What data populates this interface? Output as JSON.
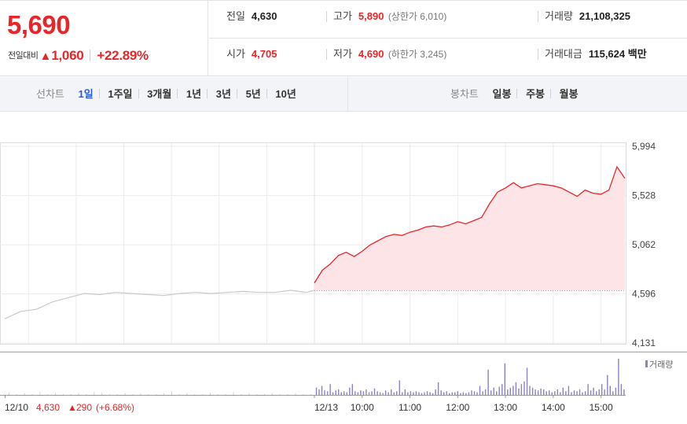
{
  "quote": {
    "price": "5,690",
    "change_label": "전일대비",
    "change_arrow": "▲",
    "change_amount": "1,060",
    "change_percent": "+22.89%"
  },
  "info": {
    "prev_close_label": "전일",
    "prev_close": "4,630",
    "high_label": "고가",
    "high": "5,890",
    "upper_limit_open": "(상한가",
    "upper_limit_value": "6,010",
    "upper_limit_close": ")",
    "volume_label": "거래량",
    "volume": "21,108,325",
    "open_label": "시가",
    "open": "4,705",
    "low_label": "저가",
    "low": "4,690",
    "lower_limit_open": "(하한가",
    "lower_limit_value": "3,245",
    "lower_limit_close": ")",
    "value_label": "거래대금",
    "value": "115,624",
    "value_unit": "백만"
  },
  "toolbar": {
    "line_chart_label": "선차트",
    "line_periods": [
      "1일",
      "1주일",
      "3개월",
      "1년",
      "3년",
      "5년",
      "10년"
    ],
    "active_period": "1일",
    "candle_chart_label": "봉차트",
    "candle_periods": [
      "일봉",
      "주봉",
      "월봉"
    ]
  },
  "colors": {
    "up": "#e8262a",
    "up_fill": "#fde4e6",
    "prev_day_line": "#c9c9c9",
    "volume": "#8f7fc6",
    "active_tab": "#2a5bd7"
  },
  "chart_data": {
    "type": "line",
    "price_axis_ticks": [
      "5,994",
      "5,528",
      "5,062",
      "4,596",
      "4,131"
    ],
    "price_axis_values": [
      5994,
      5528,
      5062,
      4596,
      4131
    ],
    "ylim": [
      4131,
      5994
    ],
    "baseline": 4630,
    "x_tick_labels": [
      "12/13",
      "10:00",
      "11:00",
      "12:00",
      "13:00",
      "14:00",
      "15:00"
    ],
    "prev_day_label": {
      "date": "12/10",
      "close": "4,630",
      "arrow": "▲",
      "change": "290",
      "percent": "(+6.68%)"
    },
    "volume_legend": "거래량",
    "series": [
      {
        "name": "12/10",
        "x": [
          "09:00",
          "09:20",
          "09:40",
          "10:00",
          "10:20",
          "10:40",
          "11:00",
          "11:20",
          "11:40",
          "12:00",
          "12:20",
          "12:40",
          "13:00",
          "13:20",
          "13:40",
          "14:00",
          "14:20",
          "14:40",
          "15:00",
          "15:20",
          "15:30"
        ],
        "y": [
          4360,
          4430,
          4450,
          4520,
          4560,
          4600,
          4590,
          4610,
          4600,
          4590,
          4580,
          4600,
          4610,
          4600,
          4610,
          4620,
          4610,
          4610,
          4630,
          4610,
          4630
        ]
      },
      {
        "name": "12/13",
        "x": [
          "09:00",
          "09:10",
          "09:20",
          "09:30",
          "09:40",
          "09:50",
          "10:00",
          "10:10",
          "10:20",
          "10:30",
          "10:40",
          "10:50",
          "11:00",
          "11:10",
          "11:20",
          "11:30",
          "11:40",
          "11:50",
          "12:00",
          "12:10",
          "12:20",
          "12:30",
          "12:40",
          "12:50",
          "13:00",
          "13:10",
          "13:20",
          "13:30",
          "13:40",
          "13:50",
          "14:00",
          "14:10",
          "14:20",
          "14:30",
          "14:40",
          "14:50",
          "15:00",
          "15:10",
          "15:20",
          "15:30"
        ],
        "y": [
          4700,
          4820,
          4880,
          4960,
          4990,
          4950,
          5000,
          5060,
          5100,
          5140,
          5160,
          5150,
          5180,
          5200,
          5230,
          5240,
          5230,
          5250,
          5280,
          5260,
          5290,
          5320,
          5450,
          5560,
          5600,
          5650,
          5600,
          5620,
          5640,
          5630,
          5620,
          5600,
          5560,
          5520,
          5580,
          5550,
          5540,
          5580,
          5800,
          5690
        ]
      }
    ],
    "volume_series": {
      "name": "거래량",
      "prev_day": [
        2,
        1,
        2,
        1,
        3,
        1,
        2,
        1,
        1,
        2,
        1,
        3,
        2,
        1,
        1,
        2,
        1,
        2,
        1,
        1,
        2,
        4,
        1,
        2,
        1,
        1,
        2,
        1,
        1,
        3,
        1,
        2,
        1,
        1,
        2,
        1,
        1,
        2,
        1,
        1
      ],
      "today": [
        8,
        6,
        10,
        5,
        4,
        12,
        3,
        5,
        6,
        3,
        4,
        3,
        8,
        12,
        4,
        3,
        5,
        4,
        6,
        3,
        4,
        7,
        4,
        3,
        2,
        5,
        3,
        6,
        3,
        4,
        16,
        3,
        6,
        3,
        4,
        3,
        4,
        3,
        2,
        3,
        4,
        3,
        2,
        6,
        14,
        5,
        3,
        4,
        2,
        3,
        3,
        4,
        2,
        3,
        2,
        3,
        5,
        4,
        3,
        10,
        4,
        6,
        28,
        5,
        8,
        4,
        9,
        12,
        35,
        6,
        8,
        10,
        14,
        7,
        12,
        15,
        30,
        10,
        8,
        6,
        5,
        7,
        6,
        4,
        5,
        3,
        4,
        6,
        3,
        8,
        4,
        10,
        3,
        5,
        4,
        6,
        3,
        4,
        12,
        5,
        8,
        4,
        6,
        12,
        6,
        22,
        10,
        4,
        8,
        40,
        12,
        6
      ]
    }
  }
}
